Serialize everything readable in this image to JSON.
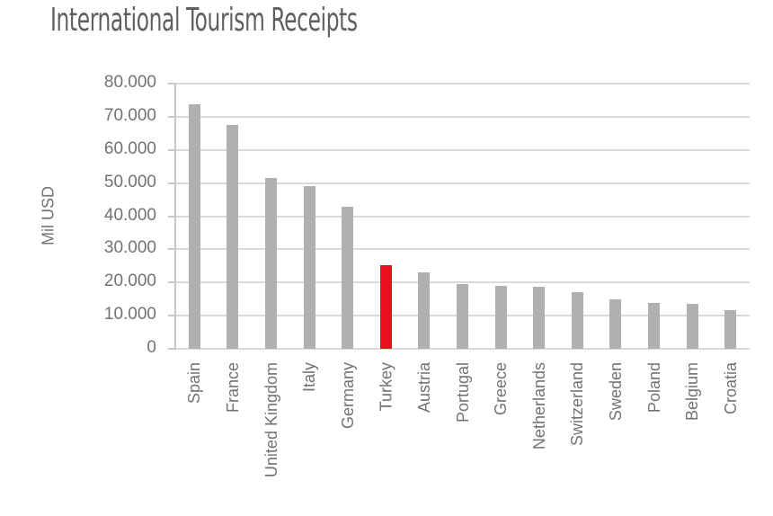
{
  "title": "International Tourism Receipts",
  "colors": {
    "bar_default": "#b0b0b0",
    "bar_highlight": "#e8101e",
    "text": "#767171",
    "gridline": "#d9d9d9"
  },
  "chart_data": {
    "type": "bar",
    "title": "International Tourism Receipts",
    "xlabel": "",
    "ylabel": "Mil USD",
    "ylim": [
      0,
      80000
    ],
    "yticks": [
      "0",
      "10.000",
      "20.000",
      "30.000",
      "40.000",
      "50.000",
      "60.000",
      "70.000",
      "80.000"
    ],
    "grid": true,
    "legend": "none",
    "highlight": "Turkey",
    "categories": [
      "Spain",
      "France",
      "United Kingdom",
      "Italy",
      "Germany",
      "Turkey",
      "Austria",
      "Portugal",
      "Greece",
      "Netherlands",
      "Switzerland",
      "Sweden",
      "Poland",
      "Belgium",
      "Croatia"
    ],
    "values": [
      73700,
      67500,
      51500,
      49200,
      42900,
      25200,
      23000,
      19600,
      19100,
      18700,
      17000,
      14900,
      13900,
      13500,
      11700
    ]
  }
}
